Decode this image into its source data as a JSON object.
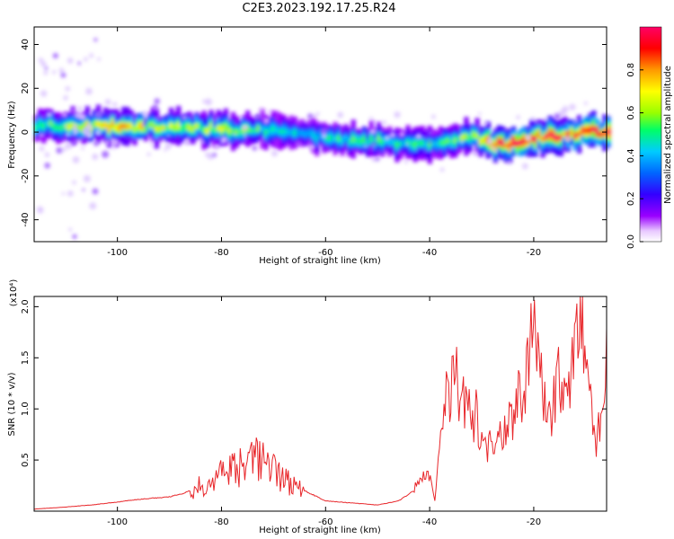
{
  "title": "C2E3.2023.192.17.25.R24",
  "chart_data": [
    {
      "type": "heatmap",
      "xlabel": "Height of straight line (km)",
      "ylabel": "Frequency (Hz)",
      "xlim": [
        -116,
        -6
      ],
      "ylim": [
        -50,
        48
      ],
      "xticks": [
        -100,
        -80,
        -60,
        -40,
        -20
      ],
      "yticks": [
        -40,
        -20,
        0,
        20,
        40
      ],
      "grid": false,
      "colorbar": {
        "label": "Normalized spectral amplitude",
        "range": [
          0.0,
          1.0
        ],
        "ticks": [
          0.0,
          0.2,
          0.4,
          0.6,
          0.8
        ],
        "tick_labels": [
          "0.0",
          "0.2",
          "0.4",
          "0.6",
          "0.8"
        ],
        "colormap": [
          "#ffffff",
          "#e8c8ff",
          "#9900ff",
          "#3300ff",
          "#0066ff",
          "#00ccff",
          "#00ff66",
          "#99ff00",
          "#ffff00",
          "#ff9900",
          "#ff0000",
          "#ff0066"
        ]
      },
      "ridge": {
        "x": [
          -116,
          -110,
          -100,
          -90,
          -80,
          -70,
          -64,
          -60,
          -55,
          -50,
          -45,
          -40,
          -36,
          -32,
          -28,
          -24,
          -20,
          -16,
          -12,
          -9,
          -6
        ],
        "center_hz": [
          3,
          3,
          2.5,
          2,
          1.5,
          0.5,
          -1,
          -3,
          -3.5,
          -4,
          -5,
          -6,
          -3,
          -2,
          -5,
          -5,
          -2,
          -2,
          -1,
          1,
          -1
        ],
        "amplitude": [
          0.45,
          0.6,
          0.75,
          0.6,
          0.65,
          0.45,
          0.4,
          0.45,
          0.5,
          0.5,
          0.45,
          0.5,
          0.55,
          0.6,
          1.0,
          1.0,
          0.95,
          0.95,
          0.9,
          0.95,
          0.9
        ]
      }
    },
    {
      "type": "line",
      "xlabel": "Height of straight line (km)",
      "ylabel": "SNR (10 * v/v)",
      "y_multiplier": "(x10⁴)",
      "xlim": [
        -116,
        -6
      ],
      "ylim": [
        0,
        2.1
      ],
      "xticks": [
        -100,
        -80,
        -60,
        -40,
        -20
      ],
      "yticks": [
        0.5,
        1.0,
        1.5,
        2.0
      ],
      "ytick_labels": [
        "0.5",
        "1.0",
        "1.5",
        "2.0"
      ],
      "grid": false,
      "line_color": "#e8262a",
      "series": [
        {
          "x": [
            -116,
            -110,
            -105,
            -100,
            -95,
            -90,
            -87,
            -84,
            -81,
            -78,
            -75,
            -72,
            -70,
            -68,
            -65,
            -62,
            -60,
            -55,
            -50,
            -46,
            -43,
            -41,
            -40,
            -39,
            -38,
            -37,
            -36,
            -35,
            -34,
            -33,
            -32,
            -31,
            -30,
            -29,
            -28,
            -27,
            -26,
            -25,
            -24,
            -23,
            -22,
            -21,
            -20,
            -19,
            -18,
            -17,
            -16,
            -15,
            -14,
            -13,
            -12,
            -11,
            -10,
            -9,
            -8,
            -7,
            -6
          ],
          "values": [
            0.02,
            0.04,
            0.06,
            0.09,
            0.12,
            0.14,
            0.18,
            0.25,
            0.32,
            0.4,
            0.45,
            0.55,
            0.4,
            0.3,
            0.22,
            0.15,
            0.1,
            0.08,
            0.06,
            0.1,
            0.2,
            0.38,
            0.35,
            0.1,
            0.75,
            1.05,
            1.15,
            1.45,
            1.0,
            1.1,
            0.85,
            0.95,
            0.65,
            0.55,
            0.7,
            0.8,
            0.75,
            0.9,
            0.95,
            1.1,
            1.05,
            1.6,
            2.05,
            1.3,
            1.15,
            0.95,
            1.1,
            1.35,
            1.25,
            1.1,
            1.7,
            2.08,
            1.3,
            1.0,
            0.65,
            1.0,
            1.5
          ]
        }
      ]
    }
  ]
}
